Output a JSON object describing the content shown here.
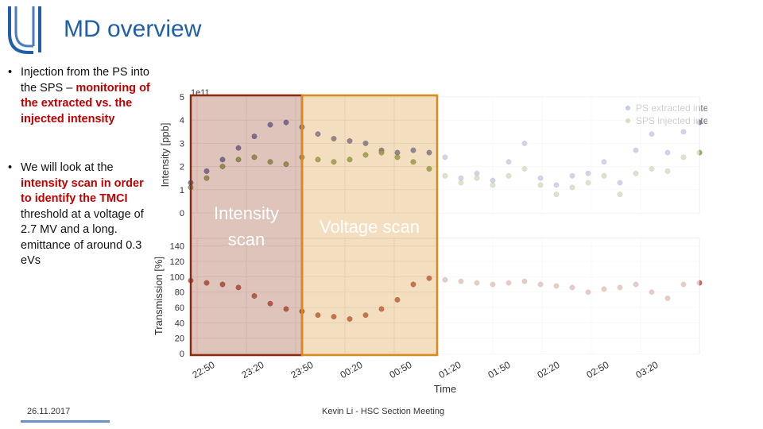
{
  "slide": {
    "title": "MD overview",
    "bullets": [
      {
        "plain": "Injection from the PS into the SPS –",
        "highlight": "monitoring of the extracted vs. the injected intensity",
        "tail": ""
      },
      {
        "plain": "We will look at the",
        "highlight": "intensity scan in order to identify the TMCI",
        "tail": "threshold at a voltage of 2.7 MV and a long. emittance of around 0.3 eVs"
      }
    ],
    "bullet_symbol": "•",
    "footer_date": "26.11.2017",
    "footer_center": "Kevin Li - HSC Section Meeting"
  },
  "colors": {
    "title": "#1f5fa8",
    "highlight": "#c00000",
    "ps_extracted": "#5b6fb8",
    "sps_injected": "#7fa84a",
    "transmission": "#c0503c",
    "intensity_box": "#8b2a10",
    "voltage_box": "#d98a1c"
  },
  "chart_data": [
    {
      "type": "scatter",
      "title": "",
      "ylabel": "Intensity [ppb]",
      "y_offset_label": "1e11",
      "ylim": [
        0,
        5
      ],
      "yticks": [
        "0",
        "1",
        "2",
        "3",
        "4",
        "5"
      ],
      "legend_position": "top-right",
      "series": [
        {
          "name": "PS extracted intensity",
          "x": [
            0,
            20,
            40,
            60,
            80,
            100,
            120,
            140,
            160,
            180,
            200,
            220,
            240,
            260,
            280,
            300,
            320,
            340,
            360,
            380,
            400,
            420,
            440,
            460,
            480,
            500,
            520,
            540,
            560,
            580,
            600,
            620,
            640
          ],
          "y": [
            1.3,
            1.8,
            2.3,
            2.8,
            3.3,
            3.8,
            3.9,
            3.7,
            3.4,
            3.2,
            3.1,
            3.0,
            2.7,
            2.6,
            2.7,
            2.6,
            2.4,
            1.5,
            1.7,
            1.4,
            2.2,
            3.0,
            1.5,
            1.2,
            1.6,
            1.7,
            2.2,
            1.3,
            2.7,
            3.4,
            2.6,
            3.5,
            3.9
          ]
        },
        {
          "name": "SPS injected intensity",
          "x": [
            0,
            20,
            40,
            60,
            80,
            100,
            120,
            140,
            160,
            180,
            200,
            220,
            240,
            260,
            280,
            300,
            320,
            340,
            360,
            380,
            400,
            420,
            440,
            460,
            480,
            500,
            520,
            540,
            560,
            580,
            600,
            620,
            640
          ],
          "y": [
            1.1,
            1.5,
            2.0,
            2.3,
            2.4,
            2.2,
            2.1,
            2.4,
            2.3,
            2.2,
            2.3,
            2.5,
            2.6,
            2.4,
            2.2,
            1.9,
            1.6,
            1.3,
            1.5,
            1.2,
            1.6,
            1.9,
            1.2,
            0.8,
            1.1,
            1.3,
            1.6,
            0.8,
            1.7,
            1.9,
            1.8,
            2.4,
            2.6
          ]
        }
      ]
    },
    {
      "type": "scatter",
      "xlabel": "Time",
      "ylabel": "Transmission [%]",
      "ylim": [
        0,
        150
      ],
      "yticks": [
        "0",
        "20",
        "40",
        "60",
        "80",
        "100",
        "120",
        "140"
      ],
      "xticks": [
        "22:50",
        "23:20",
        "23:50",
        "00:20",
        "00:50",
        "01:20",
        "01:50",
        "02:20",
        "02:50",
        "03:20"
      ],
      "series": [
        {
          "name": "Transmission",
          "x": [
            0,
            20,
            40,
            60,
            80,
            100,
            120,
            140,
            160,
            180,
            200,
            220,
            240,
            260,
            280,
            300,
            320,
            340,
            360,
            380,
            400,
            420,
            440,
            460,
            480,
            500,
            520,
            540,
            560,
            580,
            600,
            620,
            640
          ],
          "y": [
            95,
            92,
            90,
            86,
            75,
            65,
            58,
            55,
            50,
            48,
            45,
            50,
            58,
            70,
            90,
            98,
            96,
            94,
            92,
            90,
            92,
            94,
            90,
            88,
            86,
            80,
            84,
            86,
            90,
            80,
            72,
            90,
            92
          ]
        }
      ],
      "annotations": [
        {
          "label": "Intensity\nscan",
          "x_range": [
            0,
            140
          ]
        },
        {
          "label": "Voltage scan",
          "x_range": [
            140,
            310
          ]
        }
      ]
    }
  ]
}
